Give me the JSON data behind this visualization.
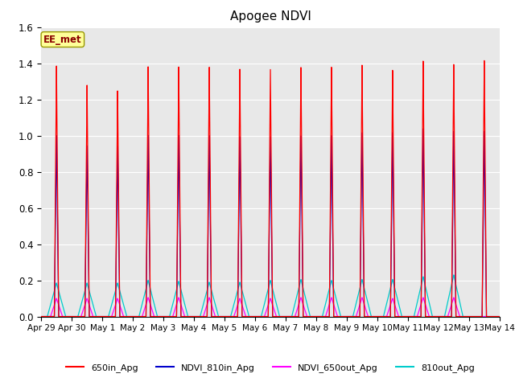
{
  "title": "Apogee NDVI",
  "xlim_days": [
    0,
    15
  ],
  "ylim": [
    0.0,
    1.6
  ],
  "yticks": [
    0.0,
    0.2,
    0.4,
    0.6,
    0.8,
    1.0,
    1.2,
    1.4,
    1.6
  ],
  "xtick_labels": [
    "Apr 29",
    "Apr 30",
    "May 1",
    "May 2",
    "May 3",
    "May 4",
    "May 5",
    "May 6",
    "May 7",
    "May 8",
    "May 9",
    "May 10",
    "May 11",
    "May 12",
    "May 13",
    "May 14"
  ],
  "xtick_positions": [
    0,
    1,
    2,
    3,
    4,
    5,
    6,
    7,
    8,
    9,
    10,
    11,
    12,
    13,
    14,
    15
  ],
  "colors": {
    "red": "#FF0000",
    "blue": "#0000CC",
    "magenta": "#FF00FF",
    "cyan": "#00CCCC"
  },
  "legend_labels": [
    "650in_Apg",
    "NDVI_810in_Apg",
    "NDVI_650out_Apg",
    "810out_Apg"
  ],
  "annotation_text": "EE_met",
  "bg_color": "#E8E8E8",
  "fig_bg": "#FFFFFF",
  "red_peaks": [
    1.385,
    1.28,
    1.25,
    1.385,
    1.385,
    1.385,
    1.375,
    1.375,
    1.385,
    1.385,
    1.395,
    1.365,
    1.415,
    1.395,
    1.415
  ],
  "blue_peaks": [
    1.0,
    0.945,
    0.945,
    1.005,
    1.005,
    1.005,
    1.0,
    1.0,
    1.005,
    1.005,
    1.02,
    1.02,
    1.04,
    1.025,
    1.025
  ],
  "cyan_peaks": [
    0.185,
    0.185,
    0.185,
    0.2,
    0.195,
    0.19,
    0.19,
    0.2,
    0.205,
    0.2,
    0.205,
    0.205,
    0.22,
    0.23,
    0.0
  ],
  "magenta_peaks": [
    0.1,
    0.1,
    0.1,
    0.105,
    0.105,
    0.105,
    0.1,
    0.1,
    0.105,
    0.105,
    0.105,
    0.1,
    0.105,
    0.105,
    0.0
  ],
  "peak_hw_sharp": 0.07,
  "peak_hw_wide": 0.3,
  "n_peaks": 15
}
